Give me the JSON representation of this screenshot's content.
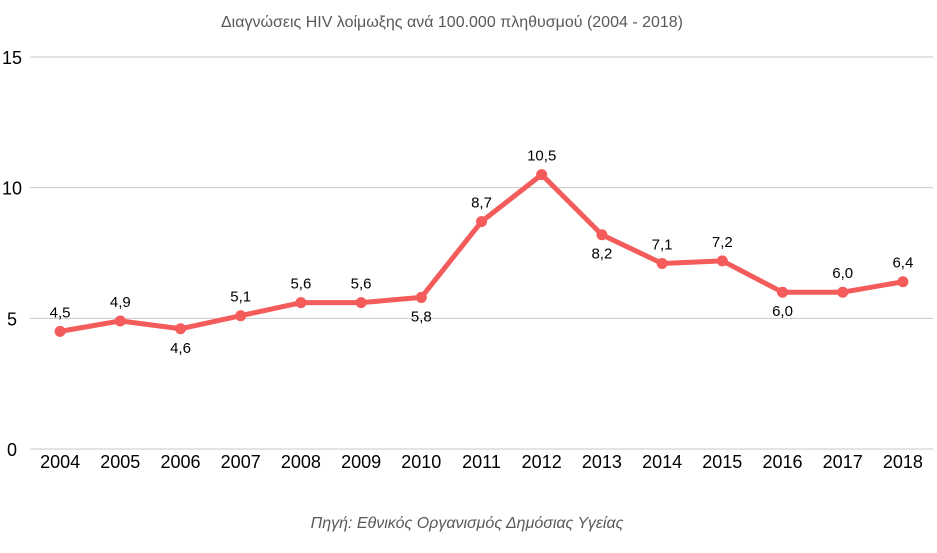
{
  "chart_data": {
    "type": "line",
    "title": "Διαγνώσεις HIV λοίμωξης ανά 100.000 πληθυσμού (2004 - 2018)",
    "source": "Πηγή: Εθνικός Οργανισμός Δημόσιας Υγείας",
    "categories": [
      "2004",
      "2005",
      "2006",
      "2007",
      "2008",
      "2009",
      "2010",
      "2011",
      "2012",
      "2013",
      "2014",
      "2015",
      "2016",
      "2017",
      "2018"
    ],
    "series": [
      {
        "values": [
          4.5,
          4.9,
          4.6,
          5.1,
          5.6,
          5.6,
          5.8,
          8.7,
          10.5,
          8.2,
          7.1,
          7.2,
          6.0,
          6.0,
          6.4
        ],
        "data_labels": [
          "4,5",
          "4,9",
          "4,6",
          "5,1",
          "5,6",
          "5,6",
          "5,8",
          "8,7",
          "10,5",
          "8,2",
          "7,1",
          "7,2",
          "6,0",
          "6,0",
          "6,4"
        ],
        "label_placement": [
          "above",
          "above",
          "below",
          "above",
          "above",
          "above",
          "below",
          "above",
          "above",
          "below",
          "above",
          "above",
          "below",
          "above",
          "above"
        ]
      }
    ],
    "ylim": [
      0,
      15
    ],
    "yticks": [
      "0",
      "5",
      "10",
      "15"
    ],
    "grid": true,
    "line_color": "#f45b5b"
  }
}
